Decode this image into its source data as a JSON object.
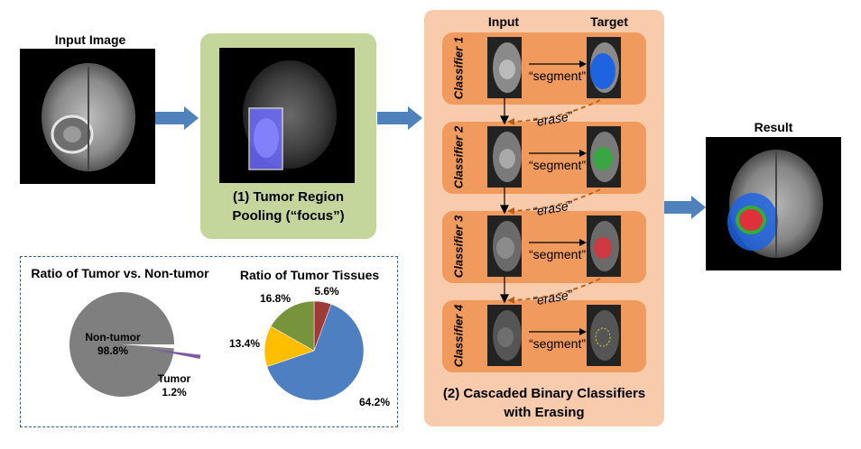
{
  "input_label": "Input Image",
  "focus": {
    "title_line1": "(1) Tumor Region",
    "title_line2": "Pooling (“focus”)"
  },
  "cascade": {
    "col_input": "Input",
    "col_target": "Target",
    "stages": [
      {
        "name": "Classifier 1",
        "action": "“segment”",
        "color": "#1f63e0"
      },
      {
        "name": "Classifier 2",
        "action": "“segment”",
        "color": "#2fae3a"
      },
      {
        "name": "Classifier 3",
        "action": "“segment”",
        "color": "#e0303a"
      },
      {
        "name": "Classifier 4",
        "action": "“segment”",
        "color": "#d8d23a"
      }
    ],
    "erase_label": "“erase”",
    "title_line1": "(2) Cascaded Binary Classifiers",
    "title_line2": "with Erasing"
  },
  "result_label": "Result",
  "chart_data": [
    {
      "type": "pie",
      "title": "Ratio of Tumor vs. Non-tumor",
      "slices": [
        {
          "label": "Non-tumor",
          "value": 98.8,
          "display": "98.8%",
          "color": "#7f7f7f"
        },
        {
          "label": "Tumor",
          "value": 1.2,
          "display": "1.2%",
          "color": "#7f5aa3"
        }
      ]
    },
    {
      "type": "pie",
      "title": "Ratio of Tumor Tissues",
      "slices": [
        {
          "label": "",
          "value": 5.6,
          "display": "5.6%",
          "color": "#9e3a38"
        },
        {
          "label": "",
          "value": 64.2,
          "display": "64.2%",
          "color": "#4e7fc0"
        },
        {
          "label": "",
          "value": 13.4,
          "display": "13.4%",
          "color": "#ffbf00"
        },
        {
          "label": "",
          "value": 16.8,
          "display": "16.8%",
          "color": "#77933c"
        }
      ]
    }
  ]
}
